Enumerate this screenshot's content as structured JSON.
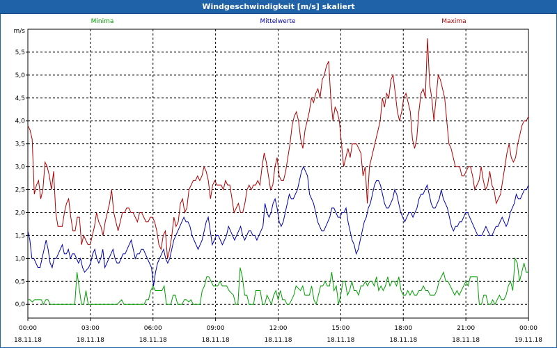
{
  "window": {
    "title": "Windgeschwindigkeit [m/s] skaliert"
  },
  "chart_data": {
    "type": "line",
    "title": "Windgeschwindigkeit [m/s] skaliert",
    "ylabel": "m/s",
    "ylim": [
      -0.3,
      6.0
    ],
    "yticks": [
      "0,0",
      "0,5",
      "1,0",
      "1,5",
      "2,0",
      "2,5",
      "3,0",
      "3,5",
      "4,0",
      "4,5",
      "5,0",
      "5,5"
    ],
    "xlim": [
      0,
      24
    ],
    "xticks": [
      {
        "time": "00:00",
        "date": "18.11.18"
      },
      {
        "time": "03:00",
        "date": "18.11.18"
      },
      {
        "time": "06:00",
        "date": "18.11.18"
      },
      {
        "time": "09:00",
        "date": "18.11.18"
      },
      {
        "time": "12:00",
        "date": "18.11.18"
      },
      {
        "time": "15:00",
        "date": "18.11.18"
      },
      {
        "time": "18:00",
        "date": "18.11.18"
      },
      {
        "time": "21:00",
        "date": "18.11.18"
      },
      {
        "time": "00:00",
        "date": "19.11.18"
      }
    ],
    "grid": true,
    "legend_position": "top",
    "series": [
      {
        "name": "Minima",
        "color": "#00a000",
        "values": [
          0.1,
          0.1,
          0.05,
          0.1,
          0.1,
          0.1,
          0.1,
          0.0,
          0.1,
          0.1,
          0.0,
          0.0,
          0.0,
          0.0,
          0.0,
          0.0,
          0.0,
          0.0,
          0.0,
          0.0,
          0.0,
          0.0,
          0.7,
          0.35,
          0.0,
          0.0,
          0.3,
          0.0,
          0.0,
          0.0,
          0.0,
          0.0,
          0.0,
          0.0,
          0.0,
          0.0,
          0.0,
          0.0,
          0.0,
          0.0,
          0.0,
          0.05,
          0.1,
          0.0,
          0.0,
          0.0,
          0.0,
          0.0,
          0.0,
          0.0,
          0.0,
          0.0,
          0.0,
          0.1,
          0.1,
          0.3,
          0.4,
          0.3,
          0.3,
          0.3,
          0.3,
          0.4,
          0.0,
          0.0,
          0.0,
          0.2,
          0.2,
          0.0,
          0.0,
          0.0,
          0.1,
          0.1,
          0.05,
          0.1,
          0.0,
          0.0,
          0.0,
          0.0,
          0.3,
          0.4,
          0.6,
          0.6,
          0.5,
          0.4,
          0.4,
          0.4,
          0.5,
          0.4,
          0.4,
          0.4,
          0.3,
          0.25,
          0.2,
          0.0,
          0.0,
          0.8,
          0.6,
          0.2,
          0.2,
          0.0,
          0.0,
          0.0,
          0.3,
          0.3,
          0.3,
          0.0,
          0.0,
          0.2,
          0.1,
          0.0,
          0.2,
          0.3,
          0.1,
          0.3,
          0.1,
          0.1,
          0.0,
          0.0,
          0.1,
          0.2,
          0.4,
          0.35,
          0.3,
          0.4,
          0.2,
          0.2,
          0.2,
          0.4,
          0.1,
          0.0,
          0.2,
          0.4,
          0.4,
          0.5,
          0.4,
          0.4,
          0.7,
          0.3,
          0.4,
          0.0,
          0.2,
          0.5,
          0.5,
          0.2,
          0.3,
          0.5,
          0.3,
          0.3,
          0.2,
          0.4,
          0.4,
          0.5,
          0.4,
          0.5,
          0.5,
          0.4,
          0.6,
          0.3,
          0.4,
          0.3,
          0.4,
          0.6,
          0.4,
          0.5,
          0.5,
          0.4,
          0.6,
          0.3,
          0.2,
          0.2,
          0.3,
          0.2,
          0.3,
          0.2,
          0.2,
          0.3,
          0.3,
          0.4,
          0.3,
          0.3,
          0.2,
          0.2,
          0.2,
          0.3,
          0.5,
          0.6,
          0.7,
          0.5,
          0.5,
          0.4,
          0.3,
          0.2,
          0.3,
          0.2,
          0.3,
          0.4,
          0.5,
          0.4,
          0.6,
          0.6,
          0.6,
          0.6,
          0.0,
          0.0,
          0.2,
          0.2,
          0.0,
          0.0,
          0.1,
          0.0,
          0.1,
          0.2,
          0.1,
          0.1,
          0.2,
          0.4,
          0.5,
          0.3,
          1.0,
          0.9,
          0.5,
          0.7,
          0.9,
          0.7,
          0.7
        ]
      },
      {
        "name": "Mittelwerte",
        "color": "#0000b0",
        "values": [
          1.6,
          1.4,
          1.0,
          1.0,
          0.9,
          0.8,
          0.8,
          1.0,
          1.2,
          1.4,
          1.2,
          0.9,
          0.8,
          1.0,
          1.0,
          1.1,
          1.2,
          1.3,
          1.1,
          1.1,
          1.2,
          1.0,
          1.1,
          1.1,
          1.0,
          0.9,
          1.0,
          0.8,
          0.7,
          0.75,
          0.8,
          0.9,
          1.1,
          1.2,
          1.0,
          0.9,
          1.0,
          1.2,
          0.8,
          0.9,
          1.0,
          1.1,
          1.2,
          1.0,
          0.9,
          0.9,
          1.0,
          1.1,
          1.1,
          1.2,
          1.3,
          1.4,
          1.2,
          1.0,
          1.1,
          1.1,
          1.2,
          1.2,
          1.1,
          1.0,
          0.9,
          0.8,
          0.4,
          0.7,
          0.9,
          1.0,
          1.1,
          1.2,
          1.0,
          0.9,
          1.0,
          1.2,
          1.4,
          1.5,
          1.6,
          1.7,
          1.8,
          1.9,
          1.8,
          1.8,
          1.7,
          1.5,
          1.4,
          1.3,
          1.2,
          1.3,
          1.4,
          1.6,
          1.8,
          1.9,
          1.6,
          1.3,
          1.4,
          1.5,
          1.5,
          1.4,
          1.3,
          1.4,
          1.5,
          1.7,
          1.6,
          1.5,
          1.4,
          1.5,
          1.6,
          1.7,
          1.5,
          1.4,
          1.5,
          1.6,
          1.6,
          1.5,
          1.5,
          1.4,
          1.5,
          1.6,
          1.7,
          2.2,
          2.0,
          1.9,
          2.0,
          2.2,
          2.3,
          2.1,
          1.8,
          1.7,
          1.8,
          2.0,
          2.2,
          2.4,
          2.3,
          2.3,
          2.4,
          2.5,
          2.7,
          2.9,
          3.0,
          2.9,
          2.8,
          2.4,
          2.3,
          2.2,
          2.0,
          1.8,
          1.7,
          1.6,
          1.6,
          1.7,
          1.8,
          1.9,
          2.1,
          2.1,
          2.0,
          1.9,
          1.9,
          2.0,
          2.0,
          2.1,
          1.8,
          1.6,
          1.4,
          1.3,
          1.1,
          1.2,
          1.4,
          1.6,
          1.8,
          1.9,
          2.1,
          2.2,
          2.4,
          2.6,
          2.7,
          2.7,
          2.6,
          2.4,
          2.2,
          2.1,
          2.1,
          2.2,
          2.3,
          2.5,
          2.4,
          2.2,
          2.0,
          1.9,
          1.8,
          1.9,
          2.0,
          2.0,
          1.9,
          2.0,
          2.1,
          2.3,
          2.4,
          2.4,
          2.5,
          2.6,
          2.4,
          2.2,
          2.1,
          2.1,
          2.2,
          2.3,
          2.5,
          2.3,
          2.2,
          2.1,
          1.9,
          1.7,
          1.6,
          1.7,
          1.7,
          1.8,
          1.8,
          1.9,
          2.0,
          2.0,
          1.9,
          1.8,
          1.7,
          1.6,
          1.5,
          1.5,
          1.5,
          1.6,
          1.7,
          1.6,
          1.5,
          1.5,
          1.6,
          1.7,
          1.7,
          1.8,
          1.9,
          1.8,
          1.7,
          1.8,
          2.0,
          2.1,
          2.2,
          2.4,
          2.3,
          2.3,
          2.4,
          2.5,
          2.5,
          2.6
        ]
      },
      {
        "name": "Maxima",
        "color": "#b00000",
        "values": [
          3.9,
          3.8,
          3.6,
          2.4,
          2.6,
          2.7,
          2.3,
          2.5,
          3.1,
          3.0,
          2.8,
          2.5,
          2.9,
          2.0,
          1.7,
          1.7,
          1.7,
          2.0,
          2.2,
          2.3,
          1.9,
          1.6,
          1.6,
          1.9,
          1.9,
          1.3,
          1.5,
          1.4,
          1.3,
          1.3,
          1.5,
          1.7,
          2.0,
          1.8,
          1.7,
          1.5,
          1.8,
          2.0,
          2.2,
          2.5,
          2.0,
          1.8,
          1.6,
          1.8,
          2.0,
          2.0,
          2.1,
          2.1,
          2.0,
          2.0,
          1.9,
          1.8,
          2.0,
          2.0,
          1.9,
          1.8,
          1.8,
          1.9,
          1.9,
          1.8,
          1.6,
          1.3,
          1.2,
          1.5,
          1.6,
          1.0,
          1.2,
          1.5,
          1.9,
          1.7,
          1.8,
          2.2,
          2.3,
          2.0,
          2.1,
          2.5,
          2.6,
          2.7,
          2.7,
          2.8,
          2.7,
          2.8,
          3.0,
          2.9,
          2.7,
          2.3,
          2.6,
          2.7,
          2.6,
          2.6,
          2.6,
          2.5,
          2.7,
          2.6,
          2.6,
          2.3,
          2.0,
          2.1,
          2.2,
          2.0,
          2.0,
          2.2,
          2.5,
          2.6,
          2.5,
          2.6,
          2.6,
          2.7,
          2.6,
          3.0,
          3.3,
          3.1,
          2.8,
          2.5,
          2.6,
          3.0,
          3.2,
          2.8,
          2.7,
          2.7,
          2.9,
          3.2,
          3.5,
          3.9,
          4.1,
          4.2,
          4.0,
          3.6,
          3.4,
          3.8,
          4.0,
          4.2,
          4.5,
          4.4,
          4.6,
          4.7,
          4.5,
          4.9,
          5.0,
          5.2,
          5.3,
          4.5,
          4.0,
          4.3,
          4.2,
          4.0,
          3.5,
          3.0,
          3.2,
          3.4,
          3.2,
          3.5,
          3.5,
          3.5,
          3.4,
          3.3,
          2.8,
          3.0,
          2.2,
          3.0,
          3.2,
          3.4,
          3.6,
          3.8,
          4.0,
          4.5,
          4.3,
          4.6,
          4.5,
          4.9,
          5.0,
          4.6,
          4.2,
          4.0,
          4.2,
          4.5,
          4.6,
          4.4,
          4.2,
          3.6,
          3.4,
          3.6,
          4.2,
          4.6,
          4.7,
          4.5,
          5.8,
          4.8,
          4.5,
          4.0,
          4.5,
          5.0,
          4.9,
          4.7,
          4.5,
          4.0,
          3.5,
          3.4,
          3.2,
          3.0,
          3.0,
          3.0,
          2.8,
          2.8,
          2.9,
          3.0,
          3.0,
          2.8,
          2.5,
          2.6,
          2.7,
          3.0,
          2.7,
          2.5,
          2.6,
          2.9,
          2.6,
          2.5,
          2.2,
          2.3,
          2.4,
          2.7,
          3.0,
          3.3,
          3.5,
          3.2,
          3.1,
          3.2,
          3.5,
          3.7,
          3.9,
          4.0,
          4.0,
          4.1
        ]
      }
    ]
  }
}
